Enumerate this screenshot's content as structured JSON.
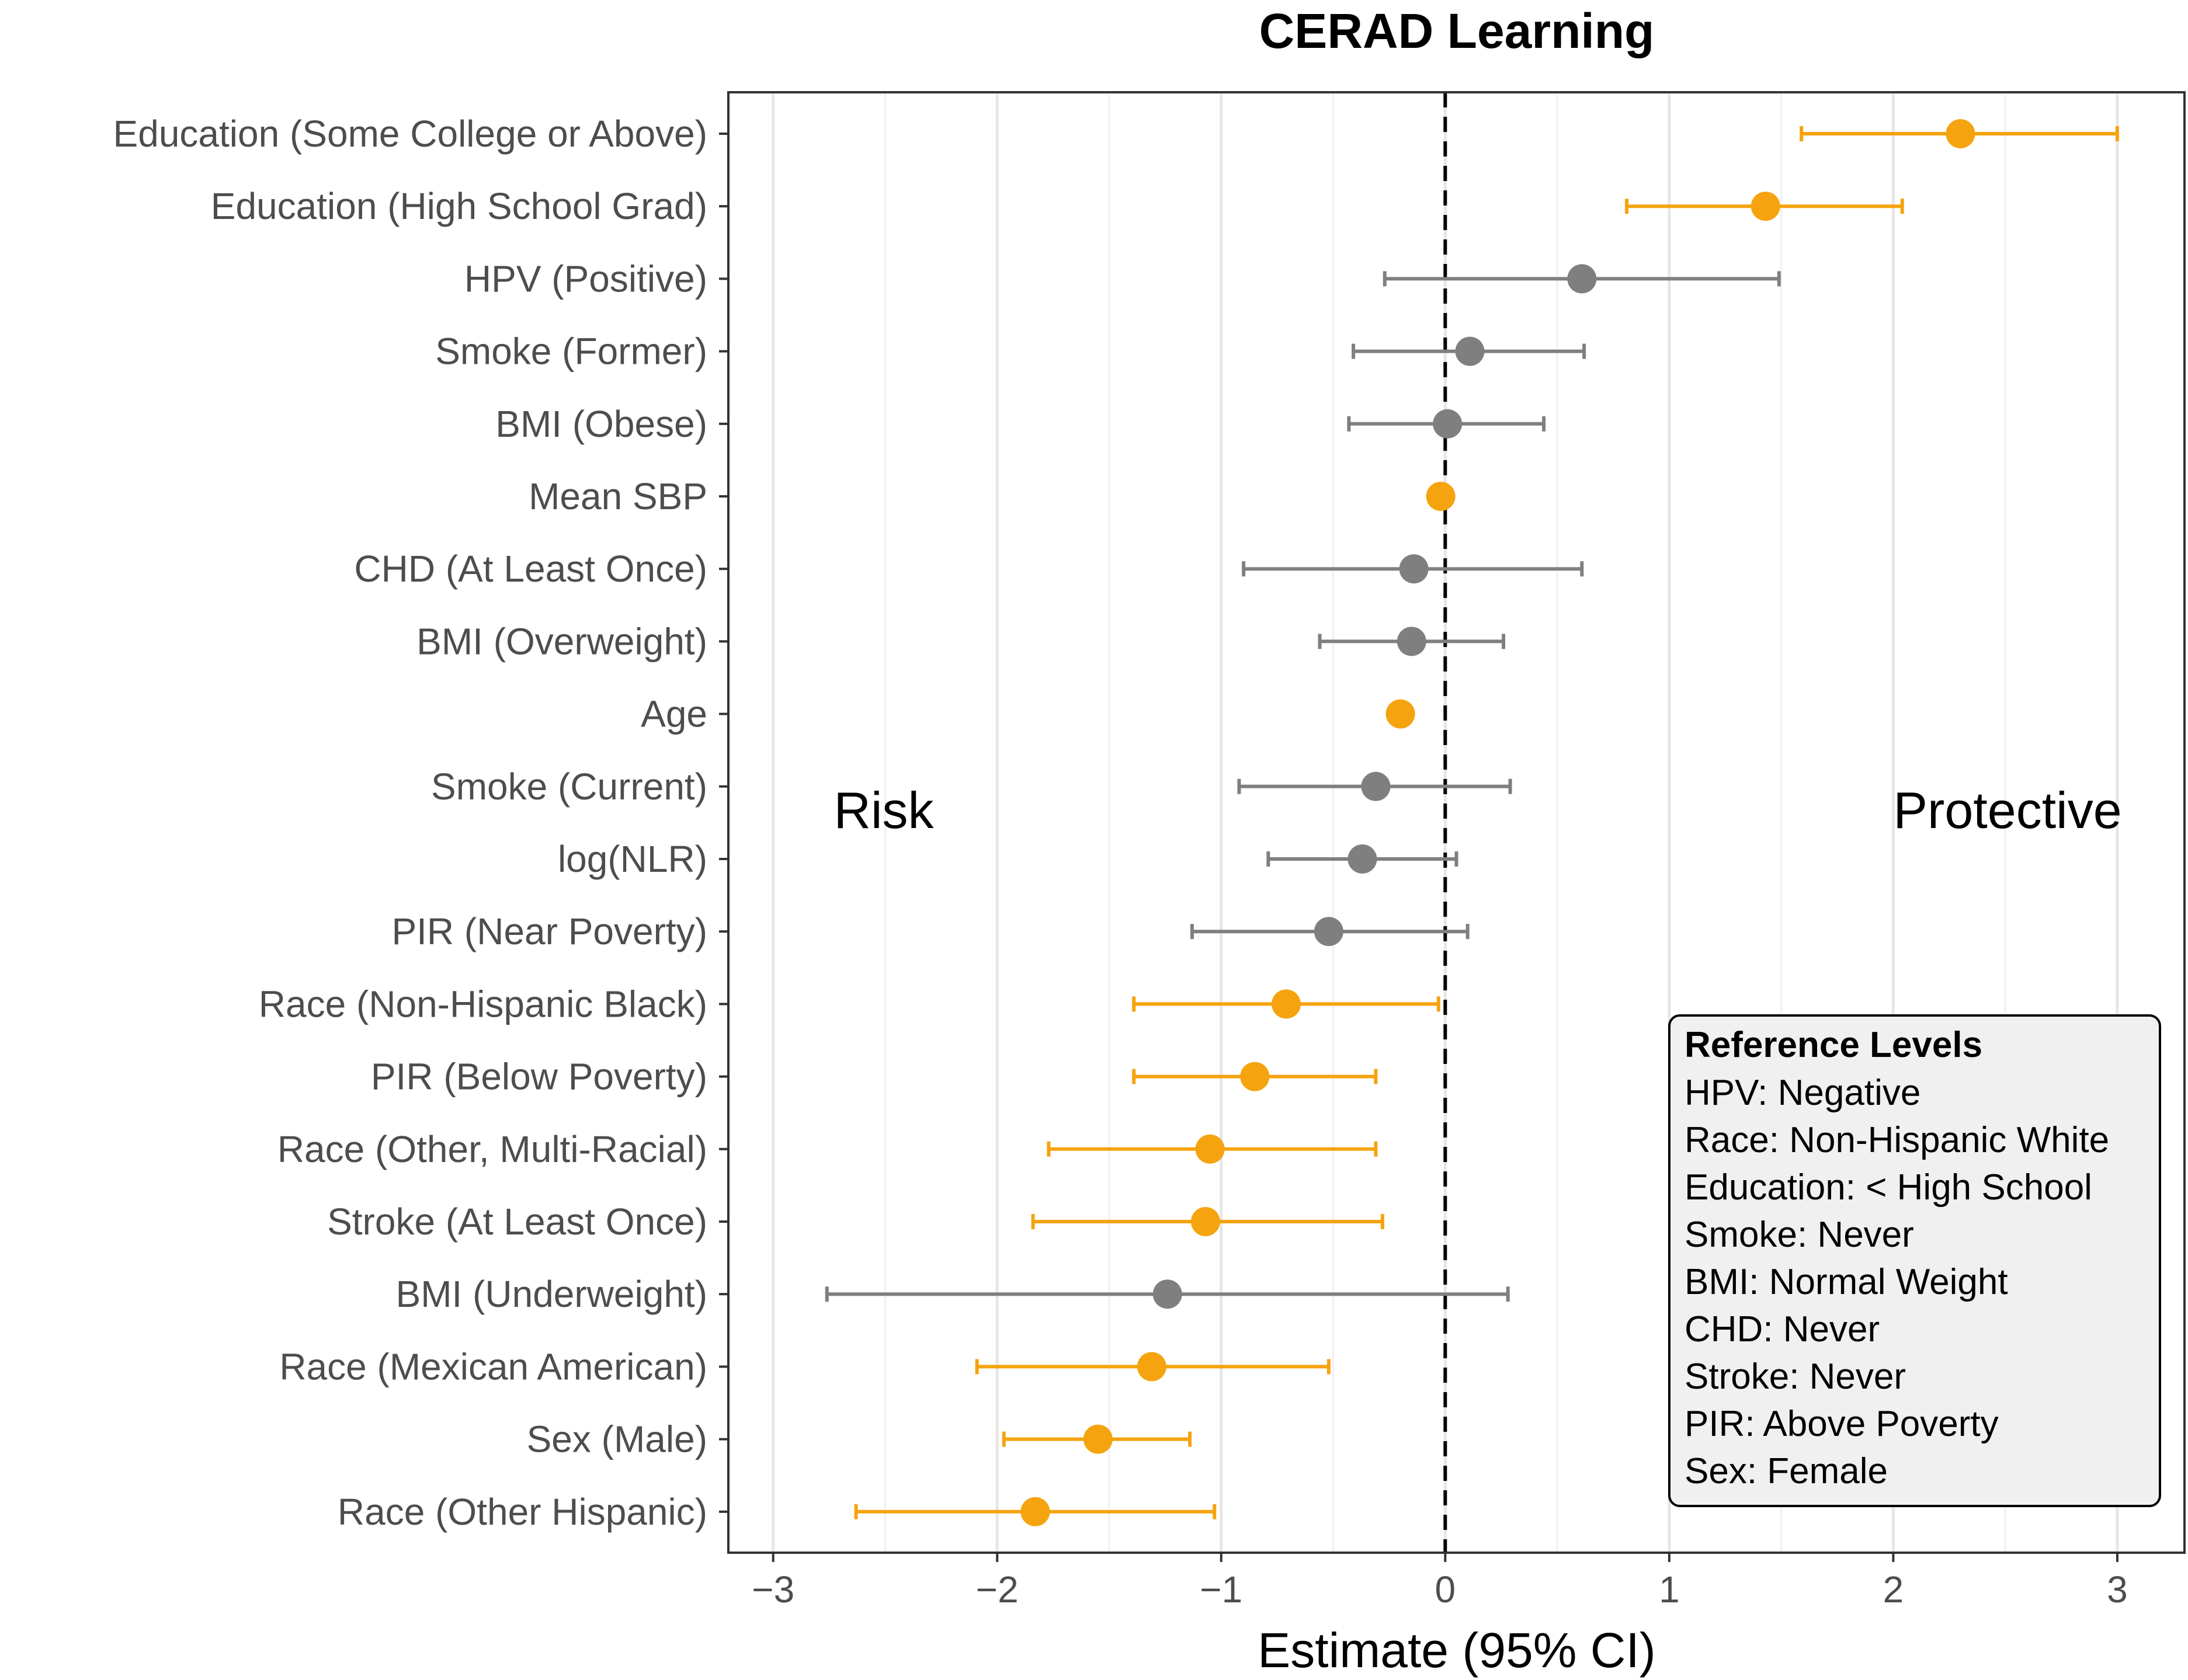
{
  "chart_data": {
    "type": "forest",
    "title": "CERAD Learning",
    "xlabel": "Estimate (95% CI)",
    "xlim": [
      -3.2,
      3.3
    ],
    "xticks": [
      -3,
      -2,
      -1,
      0,
      1,
      2,
      3
    ],
    "xtick_labels": [
      "−3",
      "−2",
      "−1",
      "0",
      "1",
      "2",
      "3"
    ],
    "reference_line": 0,
    "colors": {
      "significant": "#F5A30F",
      "nonsignificant": "#7F7F7F"
    },
    "annotations": {
      "left": "Risk",
      "right": "Protective"
    },
    "rows": [
      {
        "label": "Education (Some College or Above)",
        "estimate": 2.3,
        "lower": 1.59,
        "upper": 3.0,
        "significant": true
      },
      {
        "label": "Education (High School Grad)",
        "estimate": 1.43,
        "lower": 0.81,
        "upper": 2.04,
        "significant": true
      },
      {
        "label": "HPV (Positive)",
        "estimate": 0.61,
        "lower": -0.27,
        "upper": 1.49,
        "significant": false
      },
      {
        "label": "Smoke (Former)",
        "estimate": 0.11,
        "lower": -0.41,
        "upper": 0.62,
        "significant": false
      },
      {
        "label": "BMI (Obese)",
        "estimate": 0.01,
        "lower": -0.43,
        "upper": 0.44,
        "significant": false
      },
      {
        "label": "Mean SBP",
        "estimate": -0.02,
        "lower": -0.04,
        "upper": 0.0,
        "significant": true
      },
      {
        "label": "CHD (At Least Once)",
        "estimate": -0.14,
        "lower": -0.9,
        "upper": 0.61,
        "significant": false
      },
      {
        "label": "BMI (Overweight)",
        "estimate": -0.15,
        "lower": -0.56,
        "upper": 0.26,
        "significant": false
      },
      {
        "label": "Age",
        "estimate": -0.2,
        "lower": -0.21,
        "upper": -0.19,
        "significant": true
      },
      {
        "label": "Smoke (Current)",
        "estimate": -0.31,
        "lower": -0.92,
        "upper": 0.29,
        "significant": false
      },
      {
        "label": "log(NLR)",
        "estimate": -0.37,
        "lower": -0.79,
        "upper": 0.05,
        "significant": false
      },
      {
        "label": "PIR (Near Poverty)",
        "estimate": -0.52,
        "lower": -1.13,
        "upper": 0.1,
        "significant": false
      },
      {
        "label": "Race (Non-Hispanic Black)",
        "estimate": -0.71,
        "lower": -1.39,
        "upper": -0.03,
        "significant": true
      },
      {
        "label": "PIR (Below Poverty)",
        "estimate": -0.85,
        "lower": -1.39,
        "upper": -0.31,
        "significant": true
      },
      {
        "label": "Race (Other, Multi-Racial)",
        "estimate": -1.05,
        "lower": -1.77,
        "upper": -0.31,
        "significant": true
      },
      {
        "label": "Stroke (At Least Once)",
        "estimate": -1.07,
        "lower": -1.84,
        "upper": -0.28,
        "significant": true
      },
      {
        "label": "BMI (Underweight)",
        "estimate": -1.24,
        "lower": -2.76,
        "upper": 0.28,
        "significant": false
      },
      {
        "label": "Race (Mexican American)",
        "estimate": -1.31,
        "lower": -2.09,
        "upper": -0.52,
        "significant": true
      },
      {
        "label": "Sex (Male)",
        "estimate": -1.55,
        "lower": -1.97,
        "upper": -1.14,
        "significant": true
      },
      {
        "label": "Race (Other Hispanic)",
        "estimate": -1.83,
        "lower": -2.63,
        "upper": -1.03,
        "significant": true
      }
    ],
    "legend": {
      "title": "Reference Levels",
      "position": "bottom-right",
      "items": [
        "HPV: Negative",
        "Race: Non-Hispanic White",
        "Education: < High School",
        "Smoke: Never",
        "BMI: Normal Weight",
        "CHD: Never",
        "Stroke: Never",
        "PIR: Above Poverty",
        "Sex: Female"
      ]
    }
  }
}
